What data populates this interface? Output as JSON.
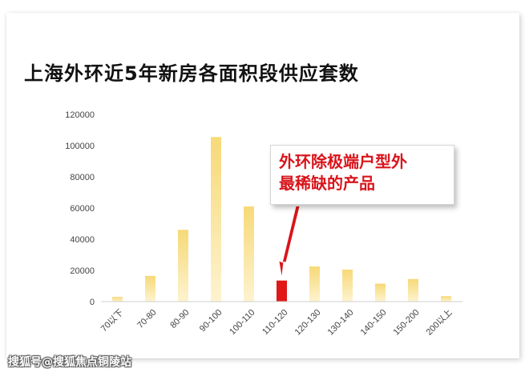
{
  "chart_data": {
    "type": "bar",
    "title": "上海外环近5年新房各面积段供应套数",
    "categories": [
      "70以下",
      "70-80",
      "80-90",
      "90-100",
      "100-110",
      "110-120",
      "120-130",
      "130-140",
      "140-150",
      "150-200",
      "200以上"
    ],
    "values": [
      3000,
      16500,
      46000,
      105500,
      61000,
      13500,
      22500,
      20500,
      11500,
      14500,
      3500
    ],
    "highlight_index": 5,
    "ylim": [
      0,
      120000
    ],
    "yticks": [
      0,
      20000,
      40000,
      60000,
      80000,
      100000,
      120000
    ],
    "grid": false,
    "bar_color": "#f2c94c",
    "highlight_color": "#e01818",
    "annotation": {
      "line1": "外环除极端户型外",
      "line2": "最稀缺的产品",
      "color": "#d9141b"
    }
  },
  "watermark": "搜狐号@搜狐焦点铜陵站"
}
